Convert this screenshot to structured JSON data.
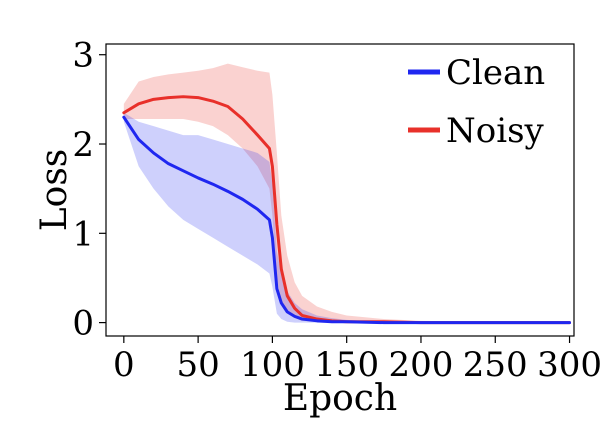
{
  "chart_data": {
    "type": "line",
    "title": "",
    "xlabel": "Epoch",
    "ylabel": "Loss",
    "xlim": [
      -12,
      303
    ],
    "ylim": [
      -0.15,
      3.12
    ],
    "x_ticks": [
      0,
      50,
      100,
      150,
      200,
      250,
      300
    ],
    "y_ticks": [
      0,
      1,
      2,
      3
    ],
    "grid": false,
    "legend_position": "top-right",
    "x": [
      0,
      10,
      20,
      30,
      40,
      50,
      60,
      70,
      80,
      90,
      98,
      100,
      103,
      106,
      110,
      115,
      120,
      130,
      140,
      150,
      175,
      200,
      250,
      300
    ],
    "series": [
      {
        "name": "Clean",
        "color": "#1f27f0",
        "band_color": "#1f27f0",
        "values": [
          2.3,
          2.05,
          1.9,
          1.78,
          1.7,
          1.62,
          1.55,
          1.47,
          1.38,
          1.27,
          1.15,
          0.95,
          0.38,
          0.22,
          0.12,
          0.07,
          0.04,
          0.02,
          0.01,
          0.01,
          0.0,
          0.0,
          0.0,
          0.0
        ],
        "lower": [
          2.25,
          1.75,
          1.5,
          1.3,
          1.15,
          1.05,
          0.95,
          0.85,
          0.75,
          0.65,
          0.55,
          0.4,
          0.1,
          0.04,
          0.01,
          0.0,
          0.0,
          0.0,
          0.0,
          0.0,
          0.0,
          0.0,
          0.0,
          0.0
        ],
        "upper": [
          2.35,
          2.25,
          2.2,
          2.15,
          2.1,
          2.1,
          2.05,
          2.0,
          1.95,
          1.9,
          1.8,
          1.55,
          0.8,
          0.55,
          0.35,
          0.22,
          0.15,
          0.08,
          0.05,
          0.03,
          0.01,
          0.01,
          0.0,
          0.0
        ]
      },
      {
        "name": "Noisy",
        "color": "#e8302a",
        "band_color": "#e8302a",
        "values": [
          2.35,
          2.45,
          2.5,
          2.52,
          2.53,
          2.52,
          2.48,
          2.42,
          2.28,
          2.1,
          1.95,
          1.75,
          1.1,
          0.6,
          0.3,
          0.16,
          0.08,
          0.04,
          0.02,
          0.01,
          0.01,
          0.0,
          0.0,
          0.0
        ],
        "lower": [
          2.28,
          2.28,
          2.28,
          2.28,
          2.28,
          2.25,
          2.2,
          2.1,
          1.95,
          1.75,
          1.5,
          1.2,
          0.5,
          0.22,
          0.1,
          0.05,
          0.02,
          0.01,
          0.0,
          0.0,
          0.0,
          0.0,
          0.0,
          0.0
        ],
        "upper": [
          2.45,
          2.7,
          2.75,
          2.78,
          2.8,
          2.82,
          2.85,
          2.9,
          2.86,
          2.82,
          2.8,
          2.55,
          1.9,
          1.2,
          0.75,
          0.45,
          0.3,
          0.18,
          0.12,
          0.08,
          0.04,
          0.02,
          0.01,
          0.01
        ]
      }
    ]
  }
}
